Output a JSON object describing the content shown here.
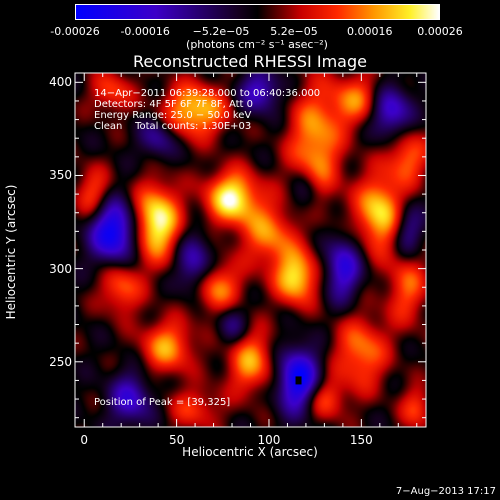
{
  "colorbar": {
    "ticks": [
      "-0.00026",
      "-0.00016",
      "−5.2e−05",
      "5.2e−05",
      "0.00016",
      "0.00026"
    ],
    "tick_values": [
      -0.00026,
      -0.00016,
      -5.2e-05,
      5.2e-05,
      0.00016,
      0.00026
    ],
    "unit": "(photons cm⁻² s⁻¹ asec⁻²)",
    "colors": [
      "#0000ff",
      "#000000",
      "#ff0000",
      "#ffff00",
      "#ffffff"
    ]
  },
  "info": {
    "line1": "14−Apr−2011 06:39:28.000 to 06:40:36.000",
    "line2": "Detectors: 4F 5F 6F 7F 8F, Att 0",
    "line3": "Energy Range: 25.0 − 50.0 keV",
    "line4": "Clean    Total counts: 1.30E+03"
  },
  "peak_text": "Position of Peak = [39,325]",
  "footer": "7−Aug−2013 17:17",
  "chart_data": {
    "type": "heatmap",
    "title": "Reconstructed RHESSI Image",
    "xlabel": "Heliocentric X (arcsec)",
    "ylabel": "Heliocentric Y (arcsec)",
    "xlim": [
      -5,
      185
    ],
    "ylim": [
      215,
      405
    ],
    "xticks": [
      "0",
      "50",
      "100",
      "150"
    ],
    "xtick_values": [
      0,
      50,
      100,
      150
    ],
    "yticks": [
      "250",
      "300",
      "350",
      "400"
    ],
    "ytick_values": [
      250,
      300,
      350,
      400
    ],
    "vlim": [
      -0.00026,
      0.00026
    ],
    "colormap": "rhessi-blue-black-red-yellow-white",
    "peak": [
      39,
      325
    ],
    "marker": [
      116,
      240
    ],
    "blobs": [
      {
        "x": 39,
        "y": 325,
        "v": 1.0,
        "sx": 9,
        "sy": 14
      },
      {
        "x": 80,
        "y": 338,
        "v": 0.95,
        "sx": 10,
        "sy": 10
      },
      {
        "x": 60,
        "y": 385,
        "v": 0.8,
        "sx": 12,
        "sy": 10
      },
      {
        "x": 125,
        "y": 365,
        "v": 0.7,
        "sx": 10,
        "sy": 22
      },
      {
        "x": 150,
        "y": 390,
        "v": 0.6,
        "sx": 12,
        "sy": 10
      },
      {
        "x": 115,
        "y": 295,
        "v": 0.85,
        "sx": 8,
        "sy": 10
      },
      {
        "x": 100,
        "y": 318,
        "v": 0.6,
        "sx": 10,
        "sy": 12
      },
      {
        "x": 160,
        "y": 330,
        "v": 0.85,
        "sx": 9,
        "sy": 14
      },
      {
        "x": 70,
        "y": 290,
        "v": 0.7,
        "sx": 10,
        "sy": 10
      },
      {
        "x": 20,
        "y": 290,
        "v": 0.55,
        "sx": 8,
        "sy": 10
      },
      {
        "x": 45,
        "y": 258,
        "v": 0.65,
        "sx": 10,
        "sy": 10
      },
      {
        "x": 90,
        "y": 250,
        "v": 0.65,
        "sx": 9,
        "sy": 12
      },
      {
        "x": 150,
        "y": 255,
        "v": 0.6,
        "sx": 10,
        "sy": 14
      },
      {
        "x": 175,
        "y": 290,
        "v": 0.5,
        "sx": 8,
        "sy": 14
      },
      {
        "x": 5,
        "y": 340,
        "v": 0.5,
        "sx": 7,
        "sy": 10
      },
      {
        "x": 15,
        "y": 395,
        "v": 0.45,
        "sx": 8,
        "sy": 8
      },
      {
        "x": 175,
        "y": 360,
        "v": 0.55,
        "sx": 8,
        "sy": 10
      },
      {
        "x": 130,
        "y": 230,
        "v": 0.5,
        "sx": 8,
        "sy": 8
      },
      {
        "x": 60,
        "y": 225,
        "v": 0.4,
        "sx": 10,
        "sy": 8
      },
      {
        "x": 180,
        "y": 225,
        "v": 0.45,
        "sx": 6,
        "sy": 8
      },
      {
        "x": 16,
        "y": 320,
        "v": -1.0,
        "sx": 9,
        "sy": 12
      },
      {
        "x": 116,
        "y": 240,
        "v": -1.0,
        "sx": 8,
        "sy": 12
      },
      {
        "x": 165,
        "y": 385,
        "v": -0.85,
        "sx": 8,
        "sy": 10
      },
      {
        "x": 95,
        "y": 395,
        "v": -0.6,
        "sx": 8,
        "sy": 8
      },
      {
        "x": 60,
        "y": 300,
        "v": -0.7,
        "sx": 7,
        "sy": 12
      },
      {
        "x": 140,
        "y": 300,
        "v": -0.7,
        "sx": 7,
        "sy": 12
      },
      {
        "x": 25,
        "y": 230,
        "v": -0.6,
        "sx": 8,
        "sy": 10
      },
      {
        "x": 175,
        "y": 320,
        "v": -0.5,
        "sx": 6,
        "sy": 10
      },
      {
        "x": 80,
        "y": 270,
        "v": -0.4,
        "sx": 6,
        "sy": 8
      },
      {
        "x": 120,
        "y": 340,
        "v": -0.4,
        "sx": 6,
        "sy": 10
      },
      {
        "x": 40,
        "y": 370,
        "v": -0.45,
        "sx": 7,
        "sy": 8
      }
    ]
  }
}
